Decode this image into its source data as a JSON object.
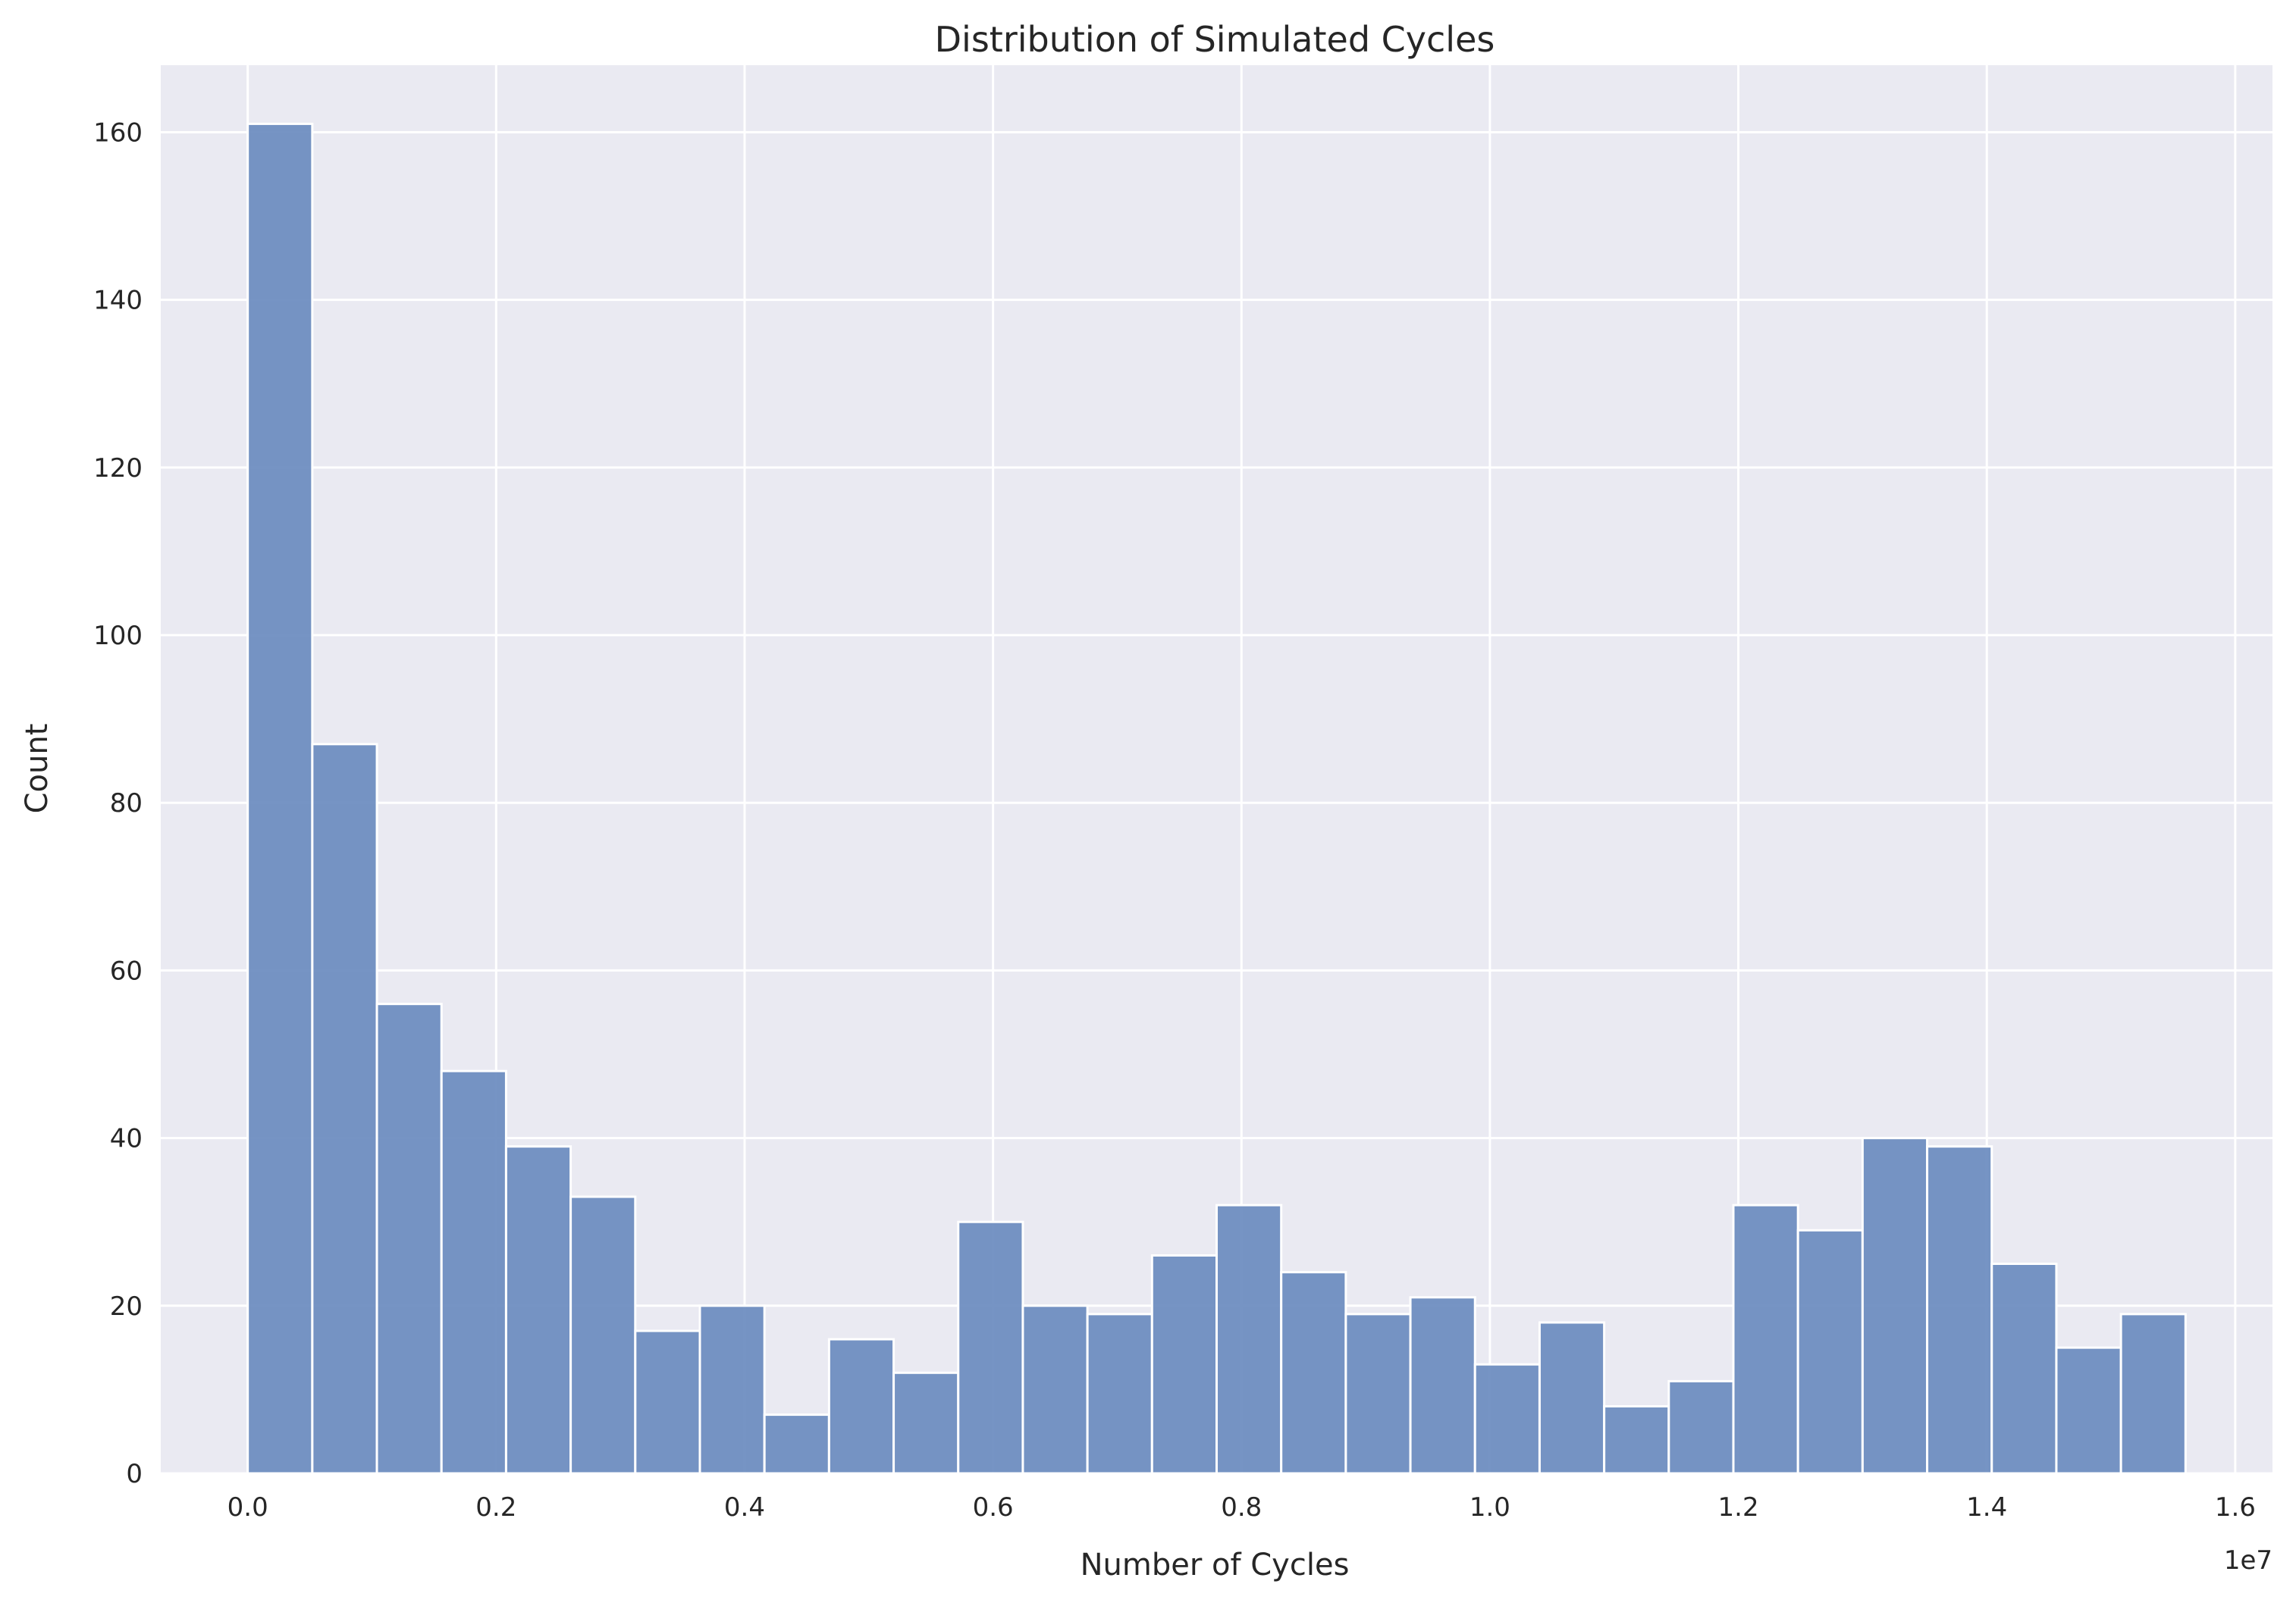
{
  "chart_data": {
    "type": "bar",
    "title": "Distribution of Simulated Cycles",
    "xlabel": "Number of Cycles",
    "ylabel": "Count",
    "x_offset_label": "1e7",
    "xlim": [
      -0.07,
      1.63
    ],
    "ylim": [
      0,
      168
    ],
    "grid": true,
    "background_color": "#eaeaf2",
    "bar_color": "#6a8bbf",
    "x_ticks": [
      0.0,
      0.2,
      0.4,
      0.6,
      0.8,
      1.0,
      1.2,
      1.4,
      1.6
    ],
    "x_tick_labels": [
      "0.0",
      "0.2",
      "0.4",
      "0.6",
      "0.8",
      "1.0",
      "1.2",
      "1.4",
      "1.6"
    ],
    "y_ticks": [
      0,
      20,
      40,
      60,
      80,
      100,
      120,
      140,
      160
    ],
    "y_tick_labels": [
      "0",
      "20",
      "40",
      "60",
      "80",
      "100",
      "120",
      "140",
      "160"
    ],
    "bin_start": 0.0,
    "bin_width": 0.052,
    "values": [
      161,
      87,
      56,
      48,
      39,
      33,
      17,
      20,
      7,
      16,
      12,
      30,
      20,
      19,
      26,
      32,
      24,
      19,
      21,
      13,
      18,
      8,
      11,
      32,
      29,
      40,
      39,
      25,
      15,
      19
    ]
  }
}
